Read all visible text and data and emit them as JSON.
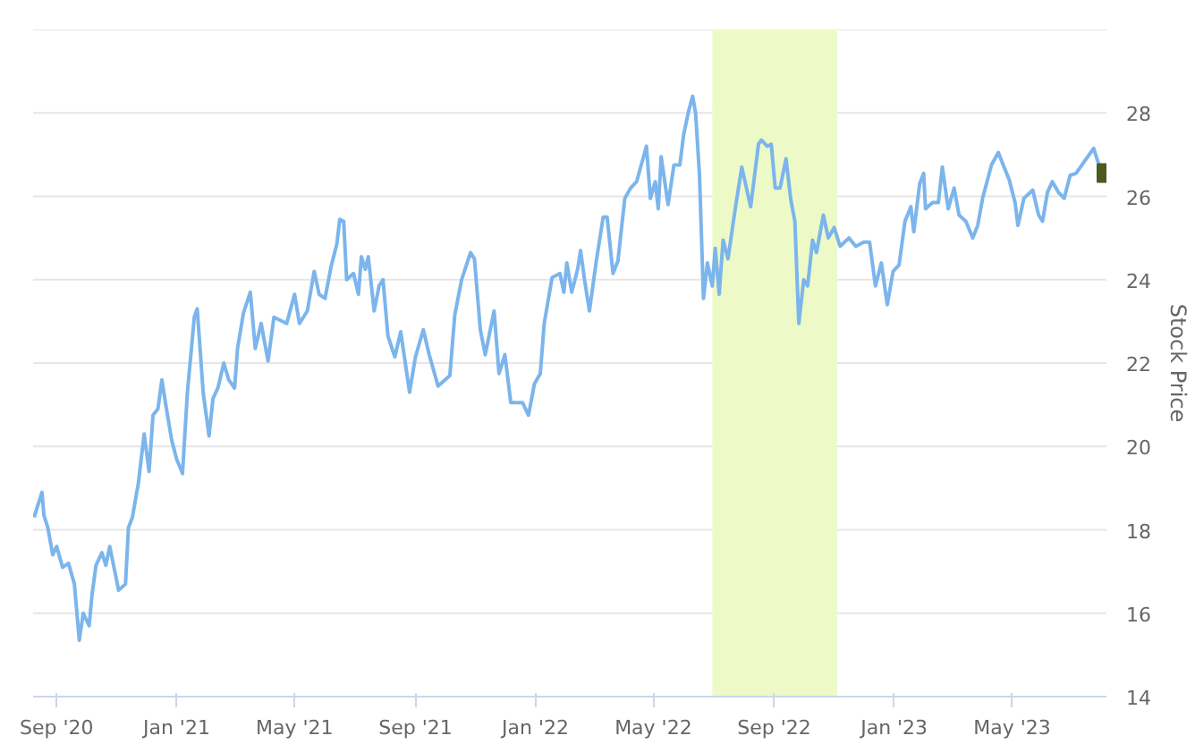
{
  "chart_data": {
    "type": "line",
    "ylabel": "Stock Price",
    "xlim": [
      "2020-08-08",
      "2023-08-05"
    ],
    "xticks": [
      {
        "value": "2020-09-01",
        "label": "Sep '20"
      },
      {
        "value": "2021-01-01",
        "label": "Jan '21"
      },
      {
        "value": "2021-05-01",
        "label": "May '21"
      },
      {
        "value": "2021-09-01",
        "label": "Sep '21"
      },
      {
        "value": "2022-01-01",
        "label": "Jan '22"
      },
      {
        "value": "2022-05-01",
        "label": "May '22"
      },
      {
        "value": "2022-09-01",
        "label": "Sep '22"
      },
      {
        "value": "2023-01-01",
        "label": "Jan '23"
      },
      {
        "value": "2023-05-01",
        "label": "May '23"
      }
    ],
    "ylim": [
      14,
      30
    ],
    "yticks": [
      14,
      16,
      18,
      20,
      22,
      24,
      26,
      28,
      {
        "value": 30,
        "label": null
      }
    ],
    "grid": "y",
    "bands": [
      {
        "axis": "x",
        "from": "2022-06-30",
        "to": "2022-11-04",
        "color": "#edfac8"
      }
    ],
    "series": [
      {
        "color": "#7cb5ec",
        "x": [
          "2020-08-09",
          "2020-08-17",
          "2020-08-19",
          "2020-08-23",
          "2020-08-28",
          "2020-09-01",
          "2020-09-07",
          "2020-09-13",
          "2020-09-19",
          "2020-09-24",
          "2020-09-28",
          "2020-10-04",
          "2020-10-07",
          "2020-10-11",
          "2020-10-17",
          "2020-10-21",
          "2020-10-25",
          "2020-11-03",
          "2020-11-10",
          "2020-11-13",
          "2020-11-17",
          "2020-11-23",
          "2020-11-29",
          "2020-12-04",
          "2020-12-08",
          "2020-12-13",
          "2020-12-17",
          "2020-12-21",
          "2020-12-27",
          "2021-01-01",
          "2021-01-07",
          "2021-01-12",
          "2021-01-19",
          "2021-01-22",
          "2021-01-28",
          "2021-02-03",
          "2021-02-07",
          "2021-02-12",
          "2021-02-18",
          "2021-02-23",
          "2021-03-01",
          "2021-03-04",
          "2021-03-10",
          "2021-03-17",
          "2021-03-22",
          "2021-03-28",
          "2021-04-04",
          "2021-04-10",
          "2021-04-23",
          "2021-05-01",
          "2021-05-06",
          "2021-05-14",
          "2021-05-21",
          "2021-05-26",
          "2021-06-01",
          "2021-06-07",
          "2021-06-13",
          "2021-06-16",
          "2021-06-20",
          "2021-06-23",
          "2021-06-30",
          "2021-07-05",
          "2021-07-08",
          "2021-07-12",
          "2021-07-15",
          "2021-07-21",
          "2021-07-26",
          "2021-07-30",
          "2021-08-04",
          "2021-08-11",
          "2021-08-17",
          "2021-08-26",
          "2021-09-01",
          "2021-09-09",
          "2021-09-15",
          "2021-09-24",
          "2021-10-06",
          "2021-10-11",
          "2021-10-18",
          "2021-10-27",
          "2021-10-31",
          "2021-11-06",
          "2021-11-11",
          "2021-11-20",
          "2021-11-25",
          "2021-12-01",
          "2021-12-07",
          "2021-12-19",
          "2021-12-25",
          "2021-12-31",
          "2022-01-06",
          "2022-01-10",
          "2022-01-18",
          "2022-01-26",
          "2022-01-30",
          "2022-02-02",
          "2022-02-07",
          "2022-02-13",
          "2022-02-16",
          "2022-02-20",
          "2022-02-25",
          "2022-03-04",
          "2022-03-11",
          "2022-03-15",
          "2022-03-21",
          "2022-03-26",
          "2022-04-02",
          "2022-04-08",
          "2022-04-14",
          "2022-04-24",
          "2022-04-28",
          "2022-05-03",
          "2022-05-06",
          "2022-05-09",
          "2022-05-16",
          "2022-05-22",
          "2022-05-28",
          "2022-06-01",
          "2022-06-06",
          "2022-06-10",
          "2022-06-13",
          "2022-06-17",
          "2022-06-21",
          "2022-06-25",
          "2022-06-30",
          "2022-07-03",
          "2022-07-07",
          "2022-07-11",
          "2022-07-16",
          "2022-07-23",
          "2022-07-30",
          "2022-08-08",
          "2022-08-16",
          "2022-08-19",
          "2022-08-25",
          "2022-08-29",
          "2022-09-02",
          "2022-09-07",
          "2022-09-13",
          "2022-09-18",
          "2022-09-22",
          "2022-09-26",
          "2022-10-01",
          "2022-10-05",
          "2022-10-10",
          "2022-10-14",
          "2022-10-21",
          "2022-10-26",
          "2022-11-01",
          "2022-11-07",
          "2022-11-16",
          "2022-11-23",
          "2022-12-01",
          "2022-12-07",
          "2022-12-13",
          "2022-12-19",
          "2022-12-25",
          "2022-12-31",
          "2023-01-06",
          "2023-01-12",
          "2023-01-18",
          "2023-01-21",
          "2023-01-27",
          "2023-01-31",
          "2023-02-02",
          "2023-02-09",
          "2023-02-15",
          "2023-02-19",
          "2023-02-25",
          "2023-03-03",
          "2023-03-08",
          "2023-03-15",
          "2023-03-22",
          "2023-03-27",
          "2023-04-01",
          "2023-04-10",
          "2023-04-17",
          "2023-04-22",
          "2023-04-28",
          "2023-05-04",
          "2023-05-07",
          "2023-05-13",
          "2023-05-22",
          "2023-05-28",
          "2023-06-01",
          "2023-06-06",
          "2023-06-11",
          "2023-06-17",
          "2023-06-23",
          "2023-06-29",
          "2023-07-05",
          "2023-07-14",
          "2023-07-23",
          "2023-07-29"
        ],
        "values": [
          18.3,
          18.9,
          18.35,
          18.05,
          17.4,
          17.6,
          17.1,
          17.2,
          16.7,
          15.35,
          16.0,
          15.7,
          16.45,
          17.15,
          17.45,
          17.15,
          17.6,
          16.55,
          16.7,
          18.05,
          18.3,
          19.1,
          20.3,
          19.4,
          20.75,
          20.9,
          21.6,
          21.0,
          20.15,
          19.7,
          19.35,
          21.3,
          23.1,
          23.3,
          21.3,
          20.25,
          21.15,
          21.4,
          22.0,
          21.6,
          21.4,
          22.35,
          23.2,
          23.7,
          22.35,
          22.95,
          22.05,
          23.1,
          22.95,
          23.65,
          22.95,
          23.25,
          24.2,
          23.65,
          23.55,
          24.3,
          24.85,
          25.45,
          25.4,
          24.0,
          24.15,
          23.65,
          24.55,
          24.25,
          24.55,
          23.25,
          23.85,
          24.0,
          22.65,
          22.15,
          22.75,
          21.3,
          22.15,
          22.8,
          22.2,
          21.45,
          21.7,
          23.15,
          24.0,
          24.65,
          24.5,
          22.8,
          22.2,
          23.25,
          21.75,
          22.2,
          21.05,
          21.05,
          20.75,
          21.5,
          21.75,
          22.95,
          24.05,
          24.15,
          23.7,
          24.4,
          23.7,
          24.25,
          24.7,
          24.0,
          23.25,
          24.45,
          25.5,
          25.5,
          24.15,
          24.45,
          25.95,
          26.2,
          26.35,
          27.2,
          25.95,
          26.35,
          25.7,
          26.95,
          25.8,
          26.75,
          26.75,
          27.5,
          28.05,
          28.4,
          28.0,
          26.5,
          23.55,
          24.4,
          23.85,
          24.75,
          23.65,
          24.95,
          24.5,
          25.65,
          26.7,
          25.75,
          27.25,
          27.35,
          27.2,
          27.25,
          26.2,
          26.2,
          26.9,
          25.9,
          25.4,
          22.95,
          24.0,
          23.85,
          24.95,
          24.65,
          25.55,
          25.0,
          25.25,
          24.8,
          25.0,
          24.8,
          24.9,
          24.9,
          23.85,
          24.4,
          23.4,
          24.2,
          24.35,
          25.4,
          25.75,
          25.15,
          26.3,
          26.55,
          25.7,
          25.85,
          25.85,
          26.7,
          25.7,
          26.2,
          25.55,
          25.4,
          25.0,
          25.3,
          25.95,
          26.75,
          27.05,
          26.75,
          26.4,
          25.85,
          25.3,
          25.95,
          26.15,
          25.55,
          25.4,
          26.1,
          26.35,
          26.1,
          25.95,
          26.5,
          26.55,
          26.85,
          27.15,
          26.7
        ]
      },
      {
        "type": "scatter",
        "marker": "square",
        "color": "#4b5a1e",
        "x": [
          "2023-08-05"
        ],
        "values": [
          26.56
        ]
      }
    ]
  }
}
